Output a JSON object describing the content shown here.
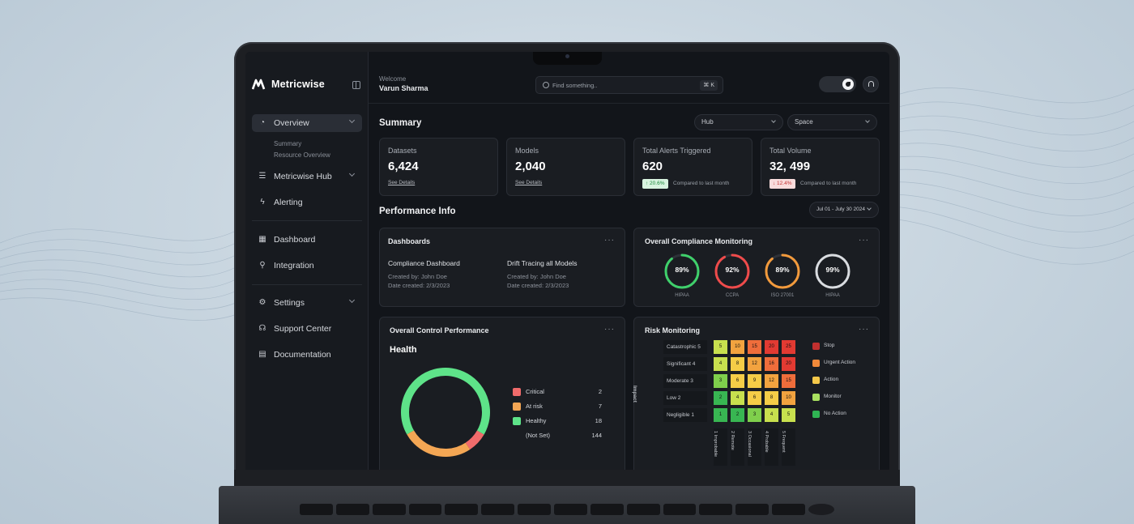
{
  "brand": {
    "name": "Metricwise"
  },
  "sidebar": {
    "items": [
      {
        "label": "Overview",
        "icon": "gauge-icon"
      },
      {
        "label": "Metricwise Hub",
        "icon": "hub-icon"
      },
      {
        "label": "Alerting",
        "icon": "bolt-icon"
      },
      {
        "label": "Dashboard",
        "icon": "grid-icon"
      },
      {
        "label": "Integration",
        "icon": "link-icon"
      },
      {
        "label": "Settings",
        "icon": "gear-icon"
      },
      {
        "label": "Support Center",
        "icon": "headset-icon"
      },
      {
        "label": "Documentation",
        "icon": "doc-icon"
      }
    ],
    "overview_sub": [
      "Summary",
      "Resource Overview"
    ]
  },
  "header": {
    "welcome": "Welcome",
    "user": "Varun Sharma",
    "search_placeholder": "Find something..",
    "shortcut": "⌘ K"
  },
  "summary": {
    "title": "Summary",
    "filter_hub": "Hub",
    "filter_space": "Space",
    "cards": [
      {
        "label": "Datasets",
        "value": "6,424",
        "link": "See Details"
      },
      {
        "label": "Models",
        "value": "2,040",
        "link": "See Details"
      },
      {
        "label": "Total Alerts Triggered",
        "value": "620",
        "badge": "↑ 20.6%",
        "compare": "Compared to last month"
      },
      {
        "label": "Total Volume",
        "value": "32, 499",
        "badge": "↓ 12.4%",
        "compare": "Compared to last month"
      }
    ]
  },
  "performance": {
    "title": "Performance Info",
    "date_range": "Jul 01 - July 30 2024",
    "dashboards": {
      "title": "Dashboards",
      "more": "···",
      "items": [
        {
          "name": "Compliance Dashboard",
          "created_by": "Created by:   John Doe",
          "date": "Date created:  2/3/2023"
        },
        {
          "name": "Drift Tracing all Models",
          "created_by": "Created by:   John Doe",
          "date": "Date created:  2/3/2023"
        }
      ]
    },
    "compliance": {
      "title": "Overall Compliance Monitoring",
      "more": "···",
      "gauges": [
        {
          "value": "89%",
          "pct": 89,
          "label": "HIPAA",
          "color": "#3fd06b"
        },
        {
          "value": "92%",
          "pct": 92,
          "label": "CCPA",
          "color": "#ef4b4b"
        },
        {
          "value": "89%",
          "pct": 89,
          "label": "ISO 27001",
          "color": "#f29a3c"
        },
        {
          "value": "99%",
          "pct": 99,
          "label": "HIPAA",
          "color": "#d9dce0"
        }
      ]
    },
    "control": {
      "title": "Overall Control Performance",
      "more": "···",
      "health_title": "Health",
      "legend": [
        {
          "name": "Critical",
          "count": "2",
          "value": 2,
          "color": "#f06b6b"
        },
        {
          "name": "At risk",
          "count": "7",
          "value": 7,
          "color": "#f3a654"
        },
        {
          "name": "Healthy",
          "count": "18",
          "value": 18,
          "color": "#5ee389"
        },
        {
          "name": "(Not Set)",
          "count": "144",
          "value": 144,
          "color": ""
        }
      ]
    },
    "risk": {
      "title": "Risk Monitoring",
      "more": "···",
      "impact_label": "Impact",
      "rows": [
        "Catastrophic 5",
        "Significant 4",
        "Moderate 3",
        "Low 2",
        "Negligible 1"
      ],
      "columns": [
        "1 Improbable",
        "2 Remote",
        "3 Occasional",
        "4 Probable",
        "5 Frequent"
      ],
      "grid": [
        [
          5,
          10,
          15,
          20,
          25
        ],
        [
          4,
          8,
          12,
          16,
          20
        ],
        [
          3,
          6,
          9,
          12,
          15
        ],
        [
          2,
          4,
          6,
          8,
          10
        ],
        [
          1,
          2,
          3,
          4,
          5
        ]
      ],
      "legend": [
        {
          "name": "Stop",
          "color": "#c0302f"
        },
        {
          "name": "Urgent Action",
          "color": "#f0893a"
        },
        {
          "name": "Action",
          "color": "#f4c84a"
        },
        {
          "name": "Monitor",
          "color": "#a9e060"
        },
        {
          "name": "No Action",
          "color": "#2fb453"
        }
      ]
    }
  }
}
